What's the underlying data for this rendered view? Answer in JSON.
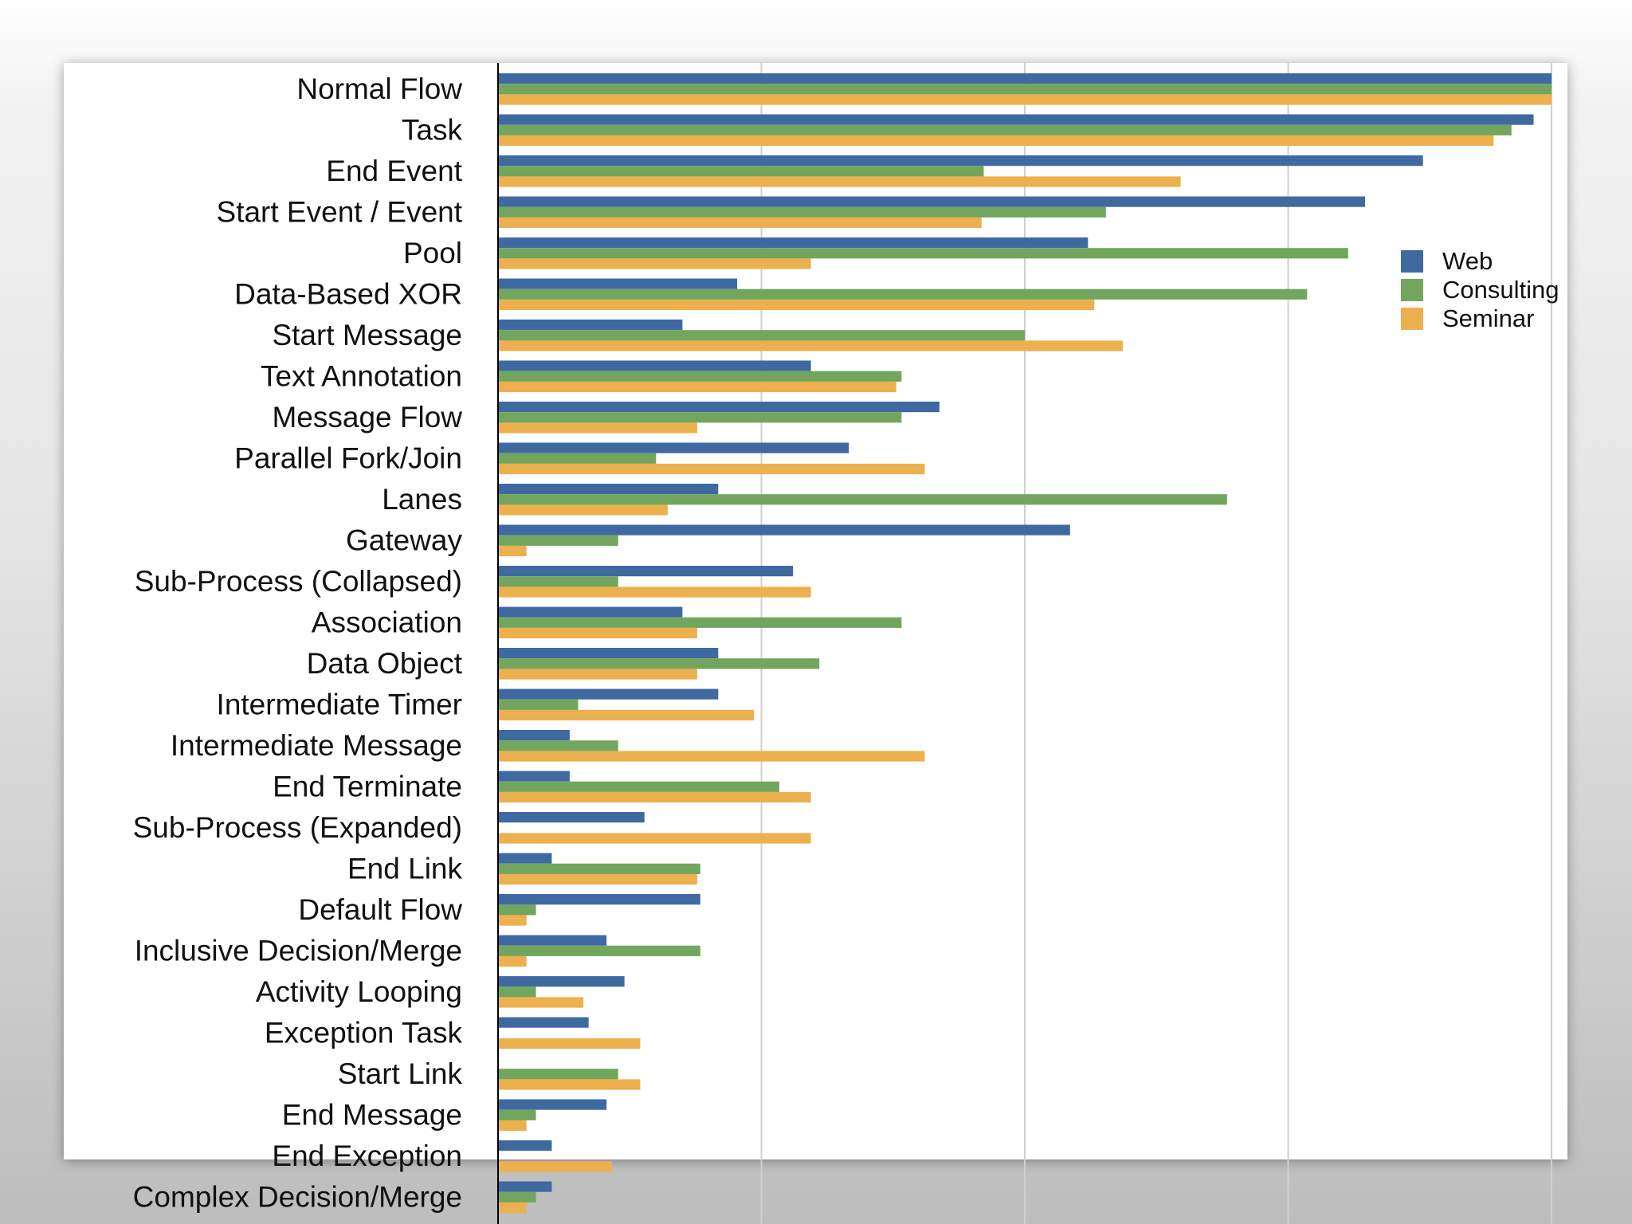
{
  "chart_data": {
    "type": "bar",
    "orientation": "horizontal",
    "title": "",
    "xlabel": "",
    "ylabel": "",
    "xlim": [
      0,
      100
    ],
    "grid": true,
    "legend_position": "right",
    "categories": [
      "Normal Flow",
      "Task",
      "End Event",
      "Start Event / Event",
      "Pool",
      "Data-Based XOR",
      "Start Message",
      "Text Annotation",
      "Message Flow",
      "Parallel Fork/Join",
      "Lanes",
      "Gateway",
      "Sub-Process (Collapsed)",
      "Association",
      "Data Object",
      "Intermediate Timer",
      "Intermediate Message",
      "End Terminate",
      "Sub-Process (Expanded)",
      "End Link",
      "Default Flow",
      "Inclusive Decision/Merge",
      "Activity Looping",
      "Exception Task",
      "Start Link",
      "End Message",
      "End Exception",
      "Complex Decision/Merge"
    ],
    "series": [
      {
        "name": "Web",
        "color": "#3f6aa1",
        "values": [
          100,
          98.3,
          87.8,
          82.3,
          56.0,
          22.7,
          17.5,
          29.7,
          41.9,
          33.3,
          20.9,
          54.3,
          28.0,
          17.5,
          20.9,
          20.9,
          6.8,
          6.8,
          13.9,
          5.1,
          19.2,
          10.3,
          12.0,
          8.6,
          0,
          10.3,
          5.1,
          5.1
        ]
      },
      {
        "name": "Consulting",
        "color": "#72a55d",
        "values": [
          100,
          96.2,
          46.1,
          57.7,
          80.7,
          76.8,
          50.0,
          38.3,
          38.3,
          15.0,
          69.2,
          11.4,
          11.4,
          38.3,
          30.5,
          7.6,
          11.4,
          26.7,
          0,
          19.2,
          3.6,
          19.2,
          3.6,
          0,
          11.4,
          3.6,
          0,
          3.6
        ]
      },
      {
        "name": "Seminar",
        "color": "#edb04e",
        "values": [
          100,
          94.5,
          64.8,
          45.9,
          29.7,
          56.6,
          59.3,
          37.8,
          18.9,
          40.5,
          16.1,
          2.7,
          29.7,
          18.9,
          18.9,
          24.3,
          40.5,
          29.7,
          29.7,
          18.9,
          2.7,
          2.7,
          8.1,
          13.5,
          13.5,
          2.7,
          10.8,
          2.7
        ]
      }
    ]
  }
}
